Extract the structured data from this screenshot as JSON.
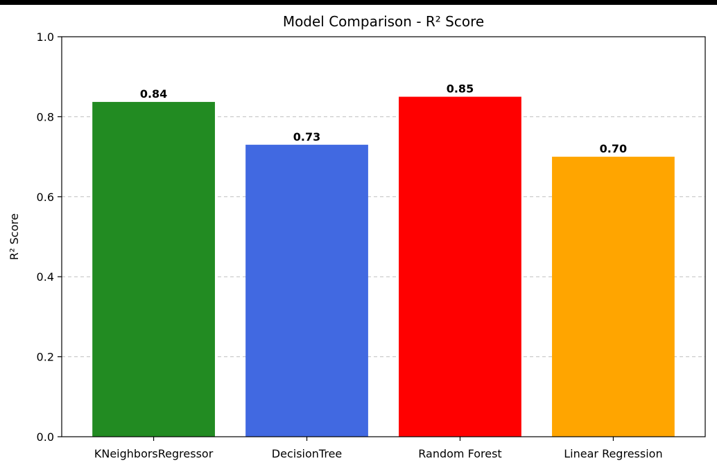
{
  "chart_data": {
    "type": "bar",
    "title": "Model Comparison - R² Score",
    "xlabel": "",
    "ylabel": "R² Score",
    "categories": [
      "KNeighborsRegressor",
      "DecisionTree",
      "Random Forest",
      "Linear Regression"
    ],
    "values": [
      0.837,
      0.73,
      0.85,
      0.7
    ],
    "data_labels": [
      "0.84",
      "0.73",
      "0.85",
      "0.70"
    ],
    "colors": [
      "#228b22",
      "#4169e1",
      "#ff0000",
      "#ffa500"
    ],
    "ylim": [
      0,
      1.0
    ],
    "yticks": [
      0.0,
      0.2,
      0.4,
      0.6,
      0.8,
      1.0
    ],
    "ytick_labels": [
      "0.0",
      "0.2",
      "0.4",
      "0.6",
      "0.8",
      "1.0"
    ],
    "grid": "y-dashed",
    "legend": "none"
  }
}
